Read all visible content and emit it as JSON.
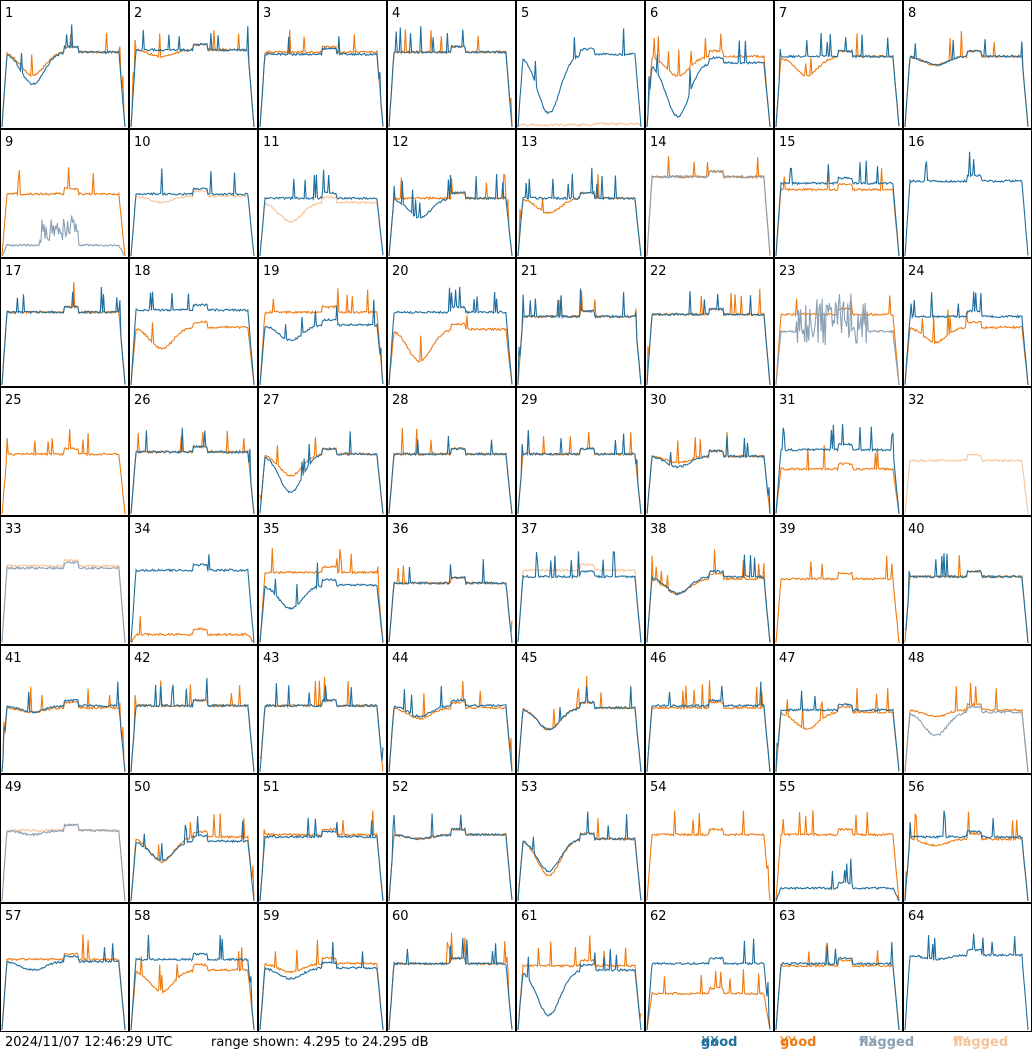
{
  "footer": {
    "timestamp": "2024/11/07 12:46:29 UTC",
    "range": "range shown: 4.295 to 24.295 dB"
  },
  "legend": [
    {
      "word": "good",
      "key": "XX",
      "color": "#1f6e9e"
    },
    {
      "word": "good",
      "key": "YY",
      "color": "#f07a10"
    },
    {
      "word": "flagged",
      "key": "XX",
      "color": "#8aa0b4"
    },
    {
      "word": "flagged",
      "key": "YY",
      "color": "#f7c49a"
    }
  ],
  "chart_data": {
    "type": "line",
    "layout": "small-multiples 8x8",
    "yrange_db": [
      4.295,
      24.295
    ],
    "panel_labels": [
      "1",
      "2",
      "3",
      "4",
      "5",
      "6",
      "7",
      "8",
      "9",
      "10",
      "11",
      "12",
      "13",
      "14",
      "15",
      "16",
      "17",
      "18",
      "19",
      "20",
      "21",
      "22",
      "23",
      "24",
      "25",
      "26",
      "27",
      "28",
      "29",
      "30",
      "31",
      "32",
      "33",
      "34",
      "35",
      "36",
      "37",
      "38",
      "39",
      "40",
      "41",
      "42",
      "43",
      "44",
      "45",
      "46",
      "47",
      "48",
      "49",
      "50",
      "51",
      "52",
      "53",
      "54",
      "55",
      "56",
      "57",
      "58",
      "59",
      "60",
      "61",
      "62",
      "63",
      "64"
    ],
    "series_notes": "Each panel shows a bandpass spectrum per polarization (XX, YY); a dip depth of 0 means a flat plateau, larger values indicate a low-frequency trough. Level is the plateau height as a fraction of the panel's dB range.",
    "panels": [
      {
        "xx": {
          "s": "g",
          "lvl": 0.7,
          "dip": 0.3
        },
        "yy": {
          "s": "g",
          "lvl": 0.7,
          "dip": 0.22
        }
      },
      {
        "xx": {
          "s": "g",
          "lvl": 0.72,
          "dip": 0
        },
        "yy": {
          "s": "g",
          "lvl": 0.72,
          "dip": 0.06
        }
      },
      {
        "xx": {
          "s": "g",
          "lvl": 0.68,
          "dip": 0
        },
        "yy": {
          "s": "g",
          "lvl": 0.7,
          "dip": 0
        }
      },
      {
        "xx": {
          "s": "g",
          "lvl": 0.7,
          "dip": 0
        },
        "yy": {
          "s": "g",
          "lvl": 0.7,
          "dip": 0
        }
      },
      {
        "xx": {
          "s": "g",
          "lvl": 0.68,
          "dip": 0.55
        },
        "yy": {
          "s": "flagged_low",
          "lvl": 0.02,
          "dip": 0
        }
      },
      {
        "xx": {
          "s": "g",
          "lvl": 0.6,
          "dip": 0.5
        },
        "yy": {
          "s": "g",
          "lvl": 0.66,
          "dip": 0.18
        }
      },
      {
        "xx": {
          "s": "g",
          "lvl": 0.66,
          "dip": 0
        },
        "yy": {
          "s": "g",
          "lvl": 0.66,
          "dip": 0.18
        }
      },
      {
        "xx": {
          "s": "g",
          "lvl": 0.66,
          "dip": 0.08
        },
        "yy": {
          "s": "g",
          "lvl": 0.66,
          "dip": 0.08
        }
      },
      {
        "xx": {
          "s": "flagged",
          "lvl": 0.1,
          "dip": 0
        },
        "yy": {
          "s": "g",
          "lvl": 0.58,
          "dip": 0
        }
      },
      {
        "xx": {
          "s": "g",
          "lvl": 0.58,
          "dip": 0
        },
        "yy": {
          "s": "flagged",
          "lvl": 0.56,
          "dip": 0.06
        }
      },
      {
        "xx": {
          "s": "g",
          "lvl": 0.54,
          "dip": 0
        },
        "yy": {
          "s": "flagged",
          "lvl": 0.5,
          "dip": 0.18
        }
      },
      {
        "xx": {
          "s": "g",
          "lvl": 0.54,
          "dip": 0.18
        },
        "yy": {
          "s": "g",
          "lvl": 0.54,
          "dip": 0
        }
      },
      {
        "xx": {
          "s": "g",
          "lvl": 0.54,
          "dip": 0
        },
        "yy": {
          "s": "g",
          "lvl": 0.54,
          "dip": 0.14
        }
      },
      {
        "xx": {
          "s": "flagged",
          "lvl": 0.74,
          "dip": 0
        },
        "yy": {
          "s": "g",
          "lvl": 0.74,
          "dip": 0
        }
      },
      {
        "xx": {
          "s": "g",
          "lvl": 0.68,
          "dip": 0
        },
        "yy": {
          "s": "g",
          "lvl": 0.62,
          "dip": 0
        }
      },
      {
        "xx": {
          "s": "g",
          "lvl": 0.7,
          "dip": 0
        },
        "yy": {
          "s": "none",
          "lvl": 0,
          "dip": 0
        }
      },
      {
        "xx": {
          "s": "g",
          "lvl": 0.68,
          "dip": 0
        },
        "yy": {
          "s": "g",
          "lvl": 0.68,
          "dip": 0
        }
      },
      {
        "xx": {
          "s": "g",
          "lvl": 0.7,
          "dip": 0
        },
        "yy": {
          "s": "g",
          "lvl": 0.54,
          "dip": 0.2
        }
      },
      {
        "xx": {
          "s": "g",
          "lvl": 0.56,
          "dip": 0.14
        },
        "yy": {
          "s": "g",
          "lvl": 0.68,
          "dip": 0
        }
      },
      {
        "xx": {
          "s": "g",
          "lvl": 0.68,
          "dip": 0
        },
        "yy": {
          "s": "g",
          "lvl": 0.52,
          "dip": 0.3
        }
      },
      {
        "xx": {
          "s": "g",
          "lvl": 0.64,
          "dip": 0
        },
        "yy": {
          "s": "g",
          "lvl": 0.64,
          "dip": 0
        }
      },
      {
        "xx": {
          "s": "g",
          "lvl": 0.66,
          "dip": 0
        },
        "yy": {
          "s": "g",
          "lvl": 0.66,
          "dip": 0
        }
      },
      {
        "xx": {
          "s": "flagged_noisy",
          "lvl": 0.5,
          "dip": 0
        },
        "yy": {
          "s": "g",
          "lvl": 0.66,
          "dip": 0
        }
      },
      {
        "xx": {
          "s": "g",
          "lvl": 0.64,
          "dip": 0
        },
        "yy": {
          "s": "g",
          "lvl": 0.54,
          "dip": 0.14
        }
      },
      {
        "xx": {
          "s": "none",
          "lvl": 0,
          "dip": 0
        },
        "yy": {
          "s": "g",
          "lvl": 0.56,
          "dip": 0
        }
      },
      {
        "xx": {
          "s": "g",
          "lvl": 0.58,
          "dip": 0
        },
        "yy": {
          "s": "g",
          "lvl": 0.58,
          "dip": 0
        }
      },
      {
        "xx": {
          "s": "g",
          "lvl": 0.56,
          "dip": 0.36
        },
        "yy": {
          "s": "g",
          "lvl": 0.56,
          "dip": 0.2
        }
      },
      {
        "xx": {
          "s": "g",
          "lvl": 0.56,
          "dip": 0
        },
        "yy": {
          "s": "g",
          "lvl": 0.56,
          "dip": 0
        }
      },
      {
        "xx": {
          "s": "g",
          "lvl": 0.56,
          "dip": 0
        },
        "yy": {
          "s": "g",
          "lvl": 0.56,
          "dip": 0
        }
      },
      {
        "xx": {
          "s": "g",
          "lvl": 0.54,
          "dip": 0.1
        },
        "yy": {
          "s": "g",
          "lvl": 0.54,
          "dip": 0.06
        }
      },
      {
        "xx": {
          "s": "g",
          "lvl": 0.6,
          "dip": 0
        },
        "yy": {
          "s": "g",
          "lvl": 0.42,
          "dip": 0
        }
      },
      {
        "xx": {
          "s": "none",
          "lvl": 0,
          "dip": 0
        },
        "yy": {
          "s": "flagged",
          "lvl": 0.5,
          "dip": 0
        }
      },
      {
        "xx": {
          "s": "flagged",
          "lvl": 0.7,
          "dip": 0
        },
        "yy": {
          "s": "flagged",
          "lvl": 0.72,
          "dip": 0
        }
      },
      {
        "xx": {
          "s": "g",
          "lvl": 0.68,
          "dip": 0
        },
        "yy": {
          "s": "g",
          "lvl": 0.08,
          "dip": 0
        }
      },
      {
        "xx": {
          "s": "g",
          "lvl": 0.54,
          "dip": 0.22
        },
        "yy": {
          "s": "g",
          "lvl": 0.66,
          "dip": 0
        }
      },
      {
        "xx": {
          "s": "g",
          "lvl": 0.56,
          "dip": 0
        },
        "yy": {
          "s": "g",
          "lvl": 0.56,
          "dip": 0
        }
      },
      {
        "xx": {
          "s": "g",
          "lvl": 0.62,
          "dip": 0
        },
        "yy": {
          "s": "flagged",
          "lvl": 0.68,
          "dip": 0
        }
      },
      {
        "xx": {
          "s": "g",
          "lvl": 0.62,
          "dip": 0.16
        },
        "yy": {
          "s": "g",
          "lvl": 0.6,
          "dip": 0.14
        }
      },
      {
        "xx": {
          "s": "none",
          "lvl": 0,
          "dip": 0
        },
        "yy": {
          "s": "g",
          "lvl": 0.6,
          "dip": 0
        }
      },
      {
        "xx": {
          "s": "g",
          "lvl": 0.62,
          "dip": 0
        },
        "yy": {
          "s": "g",
          "lvl": 0.62,
          "dip": 0
        }
      },
      {
        "xx": {
          "s": "g",
          "lvl": 0.62,
          "dip": 0.06
        },
        "yy": {
          "s": "g",
          "lvl": 0.6,
          "dip": 0.04
        }
      },
      {
        "xx": {
          "s": "g",
          "lvl": 0.62,
          "dip": 0
        },
        "yy": {
          "s": "g",
          "lvl": 0.62,
          "dip": 0
        }
      },
      {
        "xx": {
          "s": "g",
          "lvl": 0.62,
          "dip": 0
        },
        "yy": {
          "s": "g",
          "lvl": 0.62,
          "dip": 0
        }
      },
      {
        "xx": {
          "s": "g",
          "lvl": 0.62,
          "dip": 0.1
        },
        "yy": {
          "s": "g",
          "lvl": 0.6,
          "dip": 0.1
        }
      },
      {
        "xx": {
          "s": "g",
          "lvl": 0.6,
          "dip": 0.2
        },
        "yy": {
          "s": "g",
          "lvl": 0.6,
          "dip": 0.2
        }
      },
      {
        "xx": {
          "s": "g",
          "lvl": 0.62,
          "dip": 0
        },
        "yy": {
          "s": "g",
          "lvl": 0.6,
          "dip": 0
        }
      },
      {
        "xx": {
          "s": "g",
          "lvl": 0.58,
          "dip": 0
        },
        "yy": {
          "s": "g",
          "lvl": 0.56,
          "dip": 0.16
        }
      },
      {
        "xx": {
          "s": "flagged",
          "lvl": 0.56,
          "dip": 0.22
        },
        "yy": {
          "s": "g",
          "lvl": 0.58,
          "dip": 0.06
        }
      },
      {
        "xx": {
          "s": "flagged",
          "lvl": 0.66,
          "dip": 0.04
        },
        "yy": {
          "s": "flagged",
          "lvl": 0.66,
          "dip": 0
        }
      },
      {
        "xx": {
          "s": "g",
          "lvl": 0.56,
          "dip": 0.18
        },
        "yy": {
          "s": "g",
          "lvl": 0.6,
          "dip": 0.24
        }
      },
      {
        "xx": {
          "s": "g",
          "lvl": 0.6,
          "dip": 0
        },
        "yy": {
          "s": "g",
          "lvl": 0.62,
          "dip": 0
        }
      },
      {
        "xx": {
          "s": "g",
          "lvl": 0.62,
          "dip": 0.04
        },
        "yy": {
          "s": "g",
          "lvl": 0.62,
          "dip": 0.04
        }
      },
      {
        "xx": {
          "s": "g",
          "lvl": 0.58,
          "dip": 0.3
        },
        "yy": {
          "s": "g",
          "lvl": 0.58,
          "dip": 0.34
        }
      },
      {
        "xx": {
          "s": "none",
          "lvl": 0,
          "dip": 0
        },
        "yy": {
          "s": "g",
          "lvl": 0.62,
          "dip": 0
        }
      },
      {
        "xx": {
          "s": "g",
          "lvl": 0.12,
          "dip": 0
        },
        "yy": {
          "s": "g",
          "lvl": 0.62,
          "dip": 0
        }
      },
      {
        "xx": {
          "s": "g",
          "lvl": 0.6,
          "dip": 0
        },
        "yy": {
          "s": "g",
          "lvl": 0.58,
          "dip": 0.06
        }
      },
      {
        "xx": {
          "s": "g",
          "lvl": 0.64,
          "dip": 0.08
        },
        "yy": {
          "s": "g",
          "lvl": 0.66,
          "dip": 0
        }
      },
      {
        "xx": {
          "s": "g",
          "lvl": 0.66,
          "dip": 0
        },
        "yy": {
          "s": "g",
          "lvl": 0.56,
          "dip": 0.2
        }
      },
      {
        "xx": {
          "s": "g",
          "lvl": 0.58,
          "dip": 0.1
        },
        "yy": {
          "s": "g",
          "lvl": 0.62,
          "dip": 0.08
        }
      },
      {
        "xx": {
          "s": "g",
          "lvl": 0.62,
          "dip": 0
        },
        "yy": {
          "s": "g",
          "lvl": 0.62,
          "dip": 0
        }
      },
      {
        "xx": {
          "s": "g",
          "lvl": 0.56,
          "dip": 0.42
        },
        "yy": {
          "s": "g",
          "lvl": 0.6,
          "dip": 0
        }
      },
      {
        "xx": {
          "s": "g",
          "lvl": 0.62,
          "dip": 0
        },
        "yy": {
          "s": "g",
          "lvl": 0.34,
          "dip": 0
        }
      },
      {
        "xx": {
          "s": "g",
          "lvl": 0.62,
          "dip": 0
        },
        "yy": {
          "s": "g",
          "lvl": 0.6,
          "dip": 0
        }
      },
      {
        "xx": {
          "s": "g",
          "lvl": 0.7,
          "dip": 0.04
        },
        "yy": {
          "s": "none",
          "lvl": 0,
          "dip": 0
        }
      }
    ]
  }
}
